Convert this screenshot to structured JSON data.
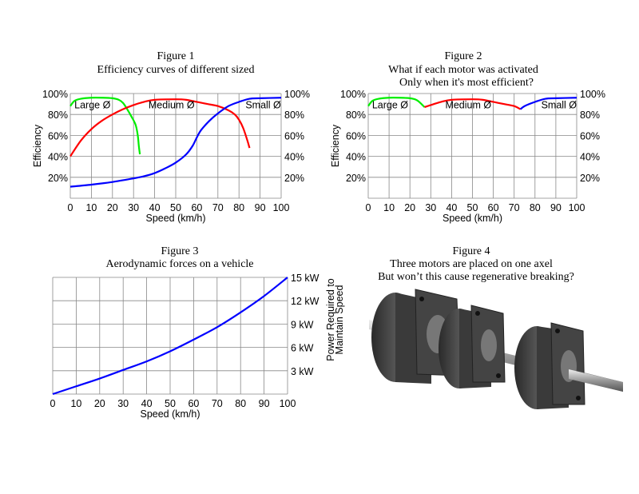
{
  "chart_data": [
    {
      "type": "line",
      "figure_label": "Figure 1",
      "title": "Efficiency curves of different sized",
      "xlabel": "Speed (km/h)",
      "ylabel": "Efficiency",
      "xlim": [
        0,
        100
      ],
      "ylim": [
        0,
        100
      ],
      "xticks": [
        "0",
        "10",
        "20",
        "30",
        "40",
        "50",
        "60",
        "70",
        "80",
        "90",
        "100"
      ],
      "yticks_left": [
        "20%",
        "40%",
        "60%",
        "80%",
        "100%"
      ],
      "yticks_right": [
        "20%",
        "40%",
        "60%",
        "80%",
        "100%"
      ],
      "grid": true,
      "series": [
        {
          "name": "Large Ø",
          "color": "#00ee00",
          "x": [
            0,
            2,
            5,
            10,
            15,
            20,
            23,
            25,
            27,
            29,
            31,
            32,
            32.5,
            33
          ],
          "y": [
            88,
            93,
            95,
            96,
            96,
            95.5,
            94,
            91,
            85,
            78,
            70,
            60,
            50,
            42
          ]
        },
        {
          "name": "Medium Ø",
          "color": "#ff0000",
          "x": [
            0,
            5,
            10,
            15,
            20,
            25,
            30,
            35,
            40,
            50,
            55,
            60,
            65,
            70,
            75,
            78,
            80,
            82,
            84,
            85
          ],
          "y": [
            40,
            55,
            66,
            74,
            80,
            85,
            89,
            92,
            94,
            94.5,
            94,
            92,
            90,
            88,
            84,
            80,
            75,
            67,
            55,
            48
          ]
        },
        {
          "name": "Small Ø",
          "color": "#0000ff",
          "x": [
            0,
            10,
            20,
            30,
            35,
            40,
            45,
            50,
            55,
            58,
            60,
            62,
            66,
            70,
            75,
            80,
            85,
            90,
            100
          ],
          "y": [
            11,
            13,
            15.5,
            19,
            21,
            24,
            28.5,
            34,
            42,
            50,
            58,
            65,
            74,
            81,
            88,
            92,
            95,
            95.5,
            96
          ]
        }
      ]
    },
    {
      "type": "line",
      "figure_label": "Figure 2",
      "title": "What if each motor was activated",
      "subtitle": "Only when it's most efficient?",
      "xlabel": "Speed (km/h)",
      "ylabel": "Efficiency",
      "xlim": [
        0,
        100
      ],
      "ylim": [
        0,
        100
      ],
      "xticks": [
        "0",
        "10",
        "20",
        "30",
        "40",
        "50",
        "60",
        "70",
        "80",
        "90",
        "100"
      ],
      "yticks_left": [
        "20%",
        "40%",
        "60%",
        "80%",
        "100%"
      ],
      "yticks_right": [
        "20%",
        "40%",
        "60%",
        "80%",
        "100%"
      ],
      "grid": true,
      "series": [
        {
          "name": "Large Ø",
          "color": "#00ee00",
          "x": [
            0,
            2,
            5,
            10,
            15,
            20,
            23,
            25,
            27
          ],
          "y": [
            88,
            93,
            95,
            96,
            96,
            95.5,
            94,
            91,
            87
          ]
        },
        {
          "name": "Medium Ø",
          "color": "#ff0000",
          "x": [
            27,
            30,
            35,
            40,
            50,
            55,
            60,
            65,
            70,
            73
          ],
          "y": [
            87,
            89,
            92,
            94,
            94.5,
            94,
            92,
            90,
            88,
            85
          ]
        },
        {
          "name": "Small Ø",
          "color": "#0000ff",
          "x": [
            73,
            75,
            80,
            85,
            90,
            100
          ],
          "y": [
            85,
            88,
            92,
            95,
            95.5,
            96
          ]
        }
      ]
    },
    {
      "type": "line",
      "figure_label": "Figure 3",
      "title": "Aerodynamic forces on a vehicle",
      "xlabel": "Speed (km/h)",
      "ylabel_lines": [
        "Power Required to",
        "Maintain Speed"
      ],
      "xlim": [
        0,
        100
      ],
      "ylim": [
        0,
        15
      ],
      "xticks": [
        "0",
        "10",
        "20",
        "30",
        "40",
        "50",
        "60",
        "70",
        "80",
        "90",
        "100"
      ],
      "yticks_right": [
        "3 kW",
        "6 kW",
        "9 kW",
        "12 kW",
        "15 kW"
      ],
      "grid": true,
      "series": [
        {
          "name": "Power",
          "color": "#0000ff",
          "x": [
            0,
            10,
            20,
            30,
            40,
            50,
            60,
            70,
            80,
            90,
            100
          ],
          "y": [
            0,
            1,
            2,
            3.1,
            4.2,
            5.5,
            7,
            8.6,
            10.5,
            12.6,
            15
          ]
        }
      ]
    }
  ],
  "figure4": {
    "figure_label": "Figure 4",
    "title": "Three motors are placed on one axel",
    "subtitle": "But won’t this cause regenerative breaking?"
  }
}
